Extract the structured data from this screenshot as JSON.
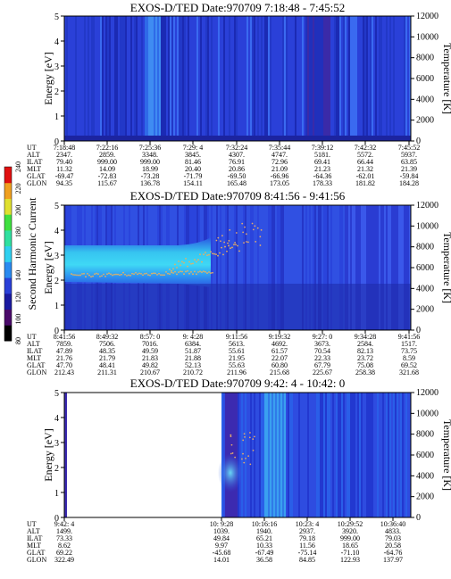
{
  "chart_data": [
    {
      "type": "heatmap",
      "title": "EXOS-D/TED   Date:970709  7:18:48 - 7:45:52",
      "ylabel": "Energy [eV]",
      "y2label": "Temperature [K]",
      "y_ticks": [
        "0",
        "1",
        "2",
        "3",
        "4",
        "5"
      ],
      "ylim": [
        0,
        5
      ],
      "y2_ticks": [
        "0",
        "2000",
        "4000",
        "6000",
        "8000",
        "10000",
        "12000"
      ],
      "y2lim": [
        0,
        12000
      ],
      "row_labels": [
        "UT",
        "ALT",
        "ILAT",
        "MLT",
        "GLAT",
        "GLON"
      ],
      "table": [
        [
          "7:18:48",
          "2347.",
          "79.40",
          "11.32",
          "-69.47",
          "94.35"
        ],
        [
          "7:22:16",
          "2859.",
          "999.00",
          "14.09",
          "-72.83",
          "115.67"
        ],
        [
          "7:25:36",
          "3348.",
          "999.00",
          "18.99",
          "-73.28",
          "136.78"
        ],
        [
          "7:29: 4",
          "3845.",
          "81.46",
          "20.40",
          "-71.79",
          "154.11"
        ],
        [
          "7:32:24",
          "4307.",
          "76.91",
          "20.86",
          "-69.50",
          "165.48"
        ],
        [
          "7:35:44",
          "4747.",
          "72.96",
          "21.09",
          "-66.96",
          "173.05"
        ],
        [
          "7:39:12",
          "5181.",
          "69.41",
          "21.23",
          "-64.36",
          "178.33"
        ],
        [
          "7:42:32",
          "5572.",
          "66.44",
          "21.32",
          "-62.01",
          "181.82"
        ],
        [
          "7:45:52",
          "5937.",
          "63.85",
          "21.39",
          "-59.84",
          "184.28"
        ]
      ]
    },
    {
      "type": "heatmap",
      "title": "EXOS-D/TED   Date:970709  8:41:56 - 9:41:56",
      "ylabel": "Energy [eV]",
      "y2label": "Temperature [K]",
      "y_ticks": [
        "0",
        "1",
        "2",
        "3",
        "4",
        "5"
      ],
      "ylim": [
        0,
        5
      ],
      "y2_ticks": [
        "0",
        "2000",
        "4000",
        "6000",
        "8000",
        "10000",
        "12000"
      ],
      "y2lim": [
        0,
        12000
      ],
      "row_labels": [
        "UT",
        "ALT",
        "ILAT",
        "MLT",
        "GLAT",
        "GLON"
      ],
      "table": [
        [
          "8:41:56",
          "7859.",
          "47.89",
          "21.76",
          "47.70",
          "212.43"
        ],
        [
          "8:49:32",
          "7506.",
          "48.35",
          "21.79",
          "48.41",
          "211.31"
        ],
        [
          "8:57: 0",
          "7016.",
          "49.59",
          "21.83",
          "49.82",
          "210.67"
        ],
        [
          "9: 4:28",
          "6384.",
          "51.87",
          "21.88",
          "52.13",
          "210.72"
        ],
        [
          "9:11:56",
          "5613.",
          "55.61",
          "21.95",
          "55.63",
          "211.96"
        ],
        [
          "9:19:32",
          "4692.",
          "61.57",
          "22.07",
          "60.80",
          "215.68"
        ],
        [
          "9:27: 0",
          "3673.",
          "70.54",
          "22.33",
          "67.79",
          "225.67"
        ],
        [
          "9:34:28",
          "2584.",
          "82.13",
          "23.72",
          "75.08",
          "258.38"
        ],
        [
          "9:41:56",
          "1517.",
          "73.75",
          "8.59",
          "69.52",
          "321.68"
        ]
      ]
    },
    {
      "type": "heatmap",
      "title": "EXOS-D/TED   Date:970709  9:42: 4 - 10:42: 0",
      "ylabel": "Energy [eV]",
      "y2label": "Temperature [K]",
      "y_ticks": [
        "0",
        "1",
        "2",
        "3",
        "4",
        "5"
      ],
      "ylim": [
        0,
        5
      ],
      "y2_ticks": [
        "0",
        "2000",
        "4000",
        "6000",
        "8000",
        "10000",
        "12000"
      ],
      "y2lim": [
        0,
        12000
      ],
      "row_labels": [
        "UT",
        "ALT",
        "ILAT",
        "MLT",
        "GLAT",
        "GLON"
      ],
      "table": [
        [
          "9:42: 4",
          "1499.",
          "73.33",
          "8.62",
          "69.22",
          "322.49"
        ],
        [
          "",
          "",
          "",
          "",
          "",
          ""
        ],
        [
          "",
          "",
          "",
          "",
          "",
          ""
        ],
        [
          "",
          "",
          "",
          "",
          "",
          ""
        ],
        [
          "10: 9:28",
          "1039.",
          "49.84",
          "9.97",
          "-45.68",
          "14.01"
        ],
        [
          "10:16:16",
          "1940.",
          "65.21",
          "10.33",
          "-67.49",
          "36.58"
        ],
        [
          "10:23: 4",
          "2937.",
          "79.18",
          "11.56",
          "-75.14",
          "84.85"
        ],
        [
          "10:29:52",
          "3920.",
          "999.00",
          "18.65",
          "-71.10",
          "122.93"
        ],
        [
          "10:36:40",
          "4833.",
          "79.03",
          "20.58",
          "-64.76",
          "137.97"
        ]
      ]
    },
    {
      "type": "colorbar",
      "label": "Second Harmonic Current",
      "ticks": [
        "80",
        "100",
        "120",
        "140",
        "160",
        "180",
        "200",
        "220",
        "240"
      ],
      "range": [
        80,
        240
      ]
    }
  ]
}
